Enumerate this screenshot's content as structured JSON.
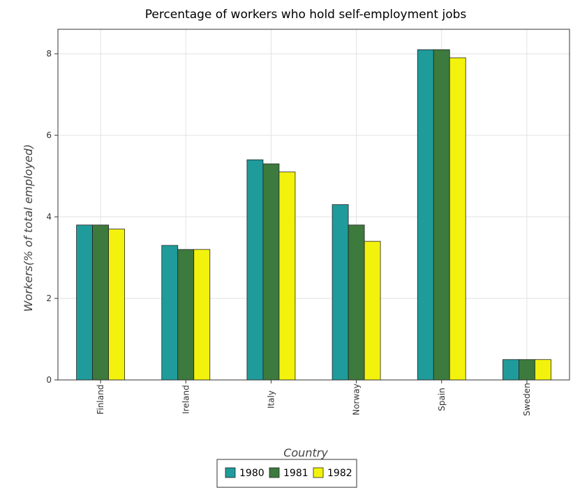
{
  "chart_data": {
    "type": "bar",
    "title": "Percentage of workers who hold self-employment jobs",
    "xlabel": "Country",
    "ylabel": "Workers(% of total employed)",
    "categories": [
      "Finland",
      "Ireland",
      "Italy",
      "Norway",
      "Spain",
      "Sweden"
    ],
    "series": [
      {
        "name": "1980",
        "color": "#1f9b9b",
        "values": [
          3.8,
          3.3,
          5.4,
          4.3,
          8.1,
          0.5
        ]
      },
      {
        "name": "1981",
        "color": "#3d7a3d",
        "values": [
          3.8,
          3.2,
          5.3,
          3.8,
          8.1,
          0.5
        ]
      },
      {
        "name": "1982",
        "color": "#f2f20d",
        "values": [
          3.7,
          3.2,
          5.1,
          3.4,
          7.9,
          0.5
        ]
      }
    ],
    "ylim": [
      0,
      8.6
    ],
    "yticks": [
      0,
      2,
      4,
      6,
      8
    ],
    "grid": true,
    "legend_position": "bottom-center"
  }
}
